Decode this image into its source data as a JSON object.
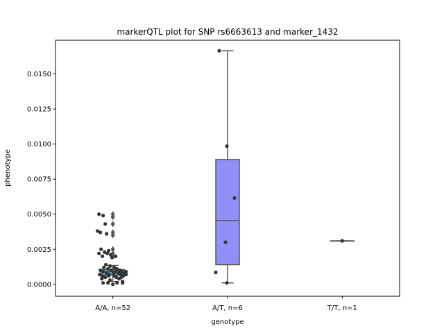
{
  "chart_data": {
    "type": "box",
    "title": "markerQTL plot for SNP rs6663613 and marker_1432",
    "xlabel": "genotype",
    "ylabel": "phenotype",
    "ylim": [
      -0.00085,
      0.0174
    ],
    "yticks": [
      "0.0000",
      "0.0025",
      "0.0050",
      "0.0075",
      "0.0100",
      "0.0125",
      "0.0150"
    ],
    "categories": [
      "A/A, n=52",
      "A/T, n=6",
      "T/T, n=1"
    ],
    "grid": false,
    "legend": "none",
    "colors": {
      "box_AA": "#5fb8f2",
      "box_AT": "#9090f6",
      "median_line": "#555555",
      "points": "#333333",
      "outliers": "#555555"
    },
    "boxes": [
      {
        "category": "A/A, n=52",
        "q1": 0.00065,
        "median": 0.0009,
        "q3": 0.00105,
        "whisker_low": 0.0002,
        "whisker_high": 0.00135,
        "outliers": [
          0.005,
          0.0048,
          0.0043,
          0.0037,
          0.0035,
          0.0025,
          0.0022,
          0.002
        ]
      },
      {
        "category": "A/T, n=6",
        "q1": 0.0014,
        "median": 0.00455,
        "q3": 0.0089,
        "whisker_low": 0.0001,
        "whisker_high": 0.01665,
        "outliers": []
      },
      {
        "category": "T/T, n=1",
        "q1": 0.0031,
        "median": 0.0031,
        "q3": 0.0031,
        "whisker_low": 0.0031,
        "whisker_high": 0.0031,
        "outliers": []
      }
    ],
    "points": [
      {
        "category": "A/A, n=52",
        "values": [
          0.005,
          0.0049,
          0.0043,
          0.0038,
          0.0037,
          0.0036,
          0.0025,
          0.0024,
          0.0023,
          0.0022,
          0.0022,
          0.0021,
          0.002,
          0.002,
          0.0019,
          0.0014,
          0.0013,
          0.0012,
          0.0012,
          0.0011,
          0.0011,
          0.001,
          0.001,
          0.001,
          0.0009,
          0.0009,
          0.0009,
          0.0009,
          0.0008,
          0.0008,
          0.0008,
          0.0008,
          0.0007,
          0.0007,
          0.0007,
          0.0007,
          0.0006,
          0.0006,
          0.0006,
          0.0006,
          0.0005,
          0.0005,
          0.0005,
          0.0004,
          0.0004,
          0.0003,
          0.0002,
          0.0001,
          0.0001,
          0.0001,
          0.0001,
          0.0
        ]
      },
      {
        "category": "A/T, n=6",
        "values": [
          0.01665,
          0.00985,
          0.00615,
          0.003,
          0.00085,
          0.0001
        ]
      },
      {
        "category": "T/T, n=1",
        "values": [
          0.0031
        ]
      }
    ]
  }
}
